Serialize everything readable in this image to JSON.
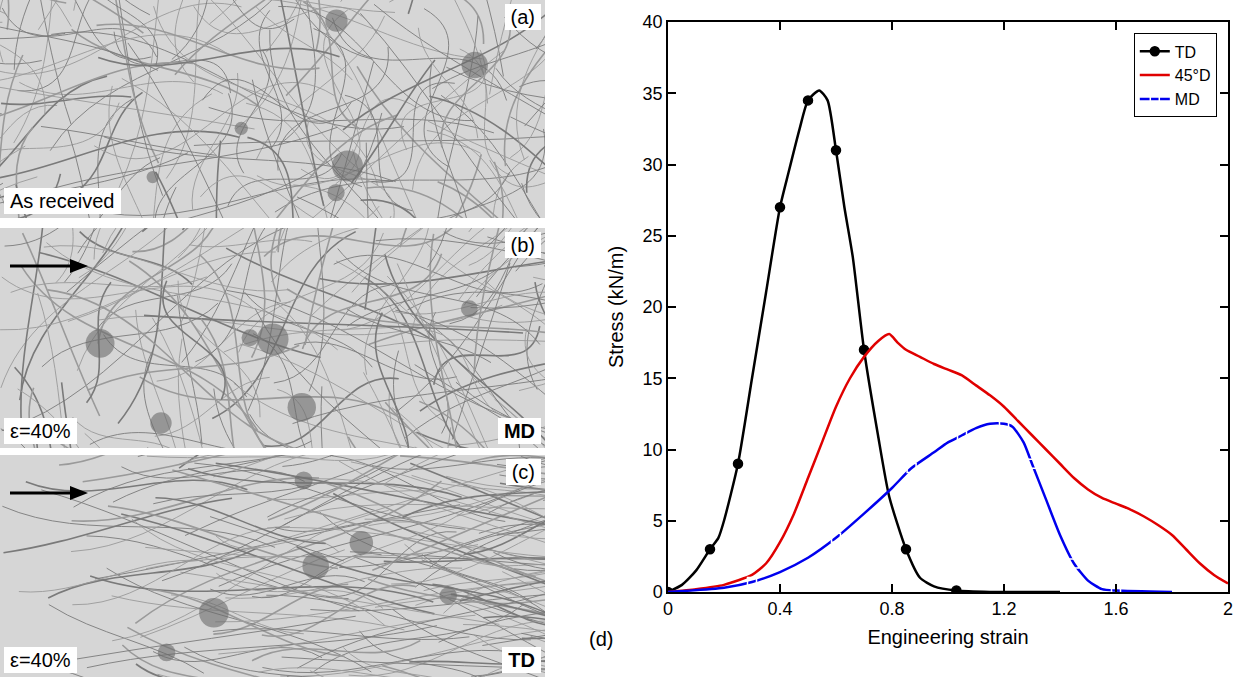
{
  "panels": [
    {
      "label": "(a)",
      "caption": "As received"
    },
    {
      "label": "(b)",
      "caption": "ε=40%",
      "direction": "MD",
      "arrow": true
    },
    {
      "label": "(c)",
      "caption": "ε=40%",
      "direction": "TD",
      "arrow": true
    }
  ],
  "chart_data": {
    "type": "line",
    "label": "(d)",
    "x_label": "Engineering strain",
    "y_label": "Stress (kN/m)",
    "xlim": [
      0,
      2
    ],
    "xticks": [
      0,
      0.4,
      0.8,
      1.2,
      1.6,
      2
    ],
    "ylim": [
      0,
      40
    ],
    "yticks": [
      0,
      5,
      10,
      15,
      20,
      25,
      30,
      35,
      40
    ],
    "grid": false,
    "legend": "top-right",
    "series": [
      {
        "name": "TD",
        "color": "#000000",
        "marker": "circle",
        "line_style": "solid",
        "x": [
          0,
          0.05,
          0.1,
          0.15,
          0.18,
          0.2,
          0.25,
          0.3,
          0.35,
          0.4,
          0.43,
          0.47,
          0.5,
          0.54,
          0.57,
          0.6,
          0.63,
          0.66,
          0.7,
          0.75,
          0.79,
          0.85,
          0.9,
          0.95,
          1.03,
          1.15,
          1.4
        ],
        "values": [
          0,
          0.5,
          1.5,
          3,
          3.8,
          5,
          9,
          15,
          21,
          27,
          29.4,
          32.5,
          34.5,
          35.2,
          34.5,
          31,
          27,
          23.5,
          17,
          11,
          6.7,
          3,
          1,
          0.4,
          0.1,
          0,
          0
        ]
      },
      {
        "name": "45°D",
        "color": "#e00000",
        "marker": "none",
        "line_style": "solid",
        "x": [
          0,
          0.1,
          0.2,
          0.3,
          0.35,
          0.4,
          0.45,
          0.5,
          0.55,
          0.6,
          0.65,
          0.7,
          0.75,
          0.79,
          0.82,
          0.85,
          0.9,
          0.95,
          1.0,
          1.05,
          1.1,
          1.15,
          1.2,
          1.25,
          1.3,
          1.35,
          1.4,
          1.45,
          1.5,
          1.55,
          1.6,
          1.65,
          1.7,
          1.75,
          1.8,
          1.85,
          1.9,
          1.95,
          2.0
        ],
        "values": [
          0,
          0.2,
          0.5,
          1.2,
          2,
          3.5,
          5.5,
          8,
          10.5,
          13,
          15,
          16.5,
          17.6,
          18.1,
          17.5,
          17,
          16.5,
          16,
          15.6,
          15.2,
          14.5,
          13.8,
          13,
          12,
          11,
          10,
          9,
          8,
          7.2,
          6.6,
          6.2,
          5.8,
          5.3,
          4.7,
          4,
          3,
          2,
          1.2,
          0.6
        ]
      },
      {
        "name": "MD",
        "color": "#0000ee",
        "marker": "square-open",
        "line_style": "solid",
        "x": [
          0,
          0.2,
          0.3,
          0.4,
          0.5,
          0.6,
          0.7,
          0.8,
          0.87,
          0.95,
          1.0,
          1.05,
          1.1,
          1.15,
          1.2,
          1.23,
          1.27,
          1.3,
          1.35,
          1.4,
          1.45,
          1.5,
          1.55,
          1.6,
          1.8
        ],
        "values": [
          0,
          0.3,
          0.7,
          1.4,
          2.4,
          3.8,
          5.5,
          7.3,
          8.7,
          9.8,
          10.5,
          11,
          11.5,
          11.8,
          11.8,
          11.6,
          10.5,
          9,
          6.5,
          4,
          2,
          0.8,
          0.2,
          0.1,
          0
        ]
      }
    ]
  }
}
